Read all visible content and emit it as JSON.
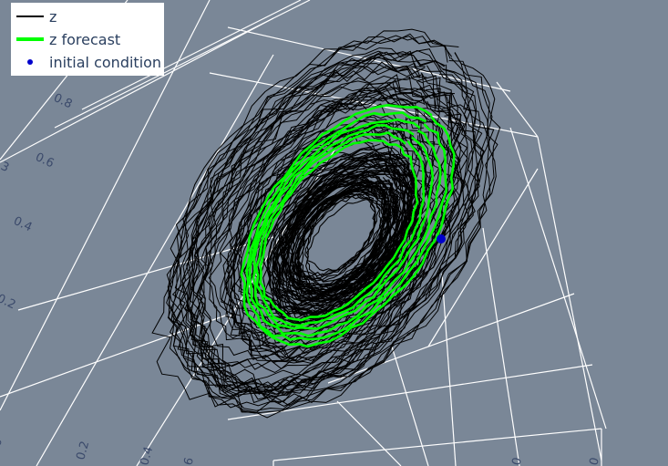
{
  "chart_data": {
    "type": "line3d",
    "background": "#7a8797",
    "grid": true,
    "legend_position": "top-left",
    "series": [
      {
        "name": "z",
        "color": "#000000",
        "kind": "line"
      },
      {
        "name": "z forecast",
        "color": "#00ff00",
        "kind": "line"
      },
      {
        "name": "initial condition",
        "color": "#0000cc",
        "kind": "marker"
      }
    ],
    "tick_labels": {
      "left_axis": [
        "0.8",
        "0.6",
        "0.4",
        "0.2"
      ],
      "bottom_axis": [
        "0.2",
        "0.4"
      ]
    }
  }
}
